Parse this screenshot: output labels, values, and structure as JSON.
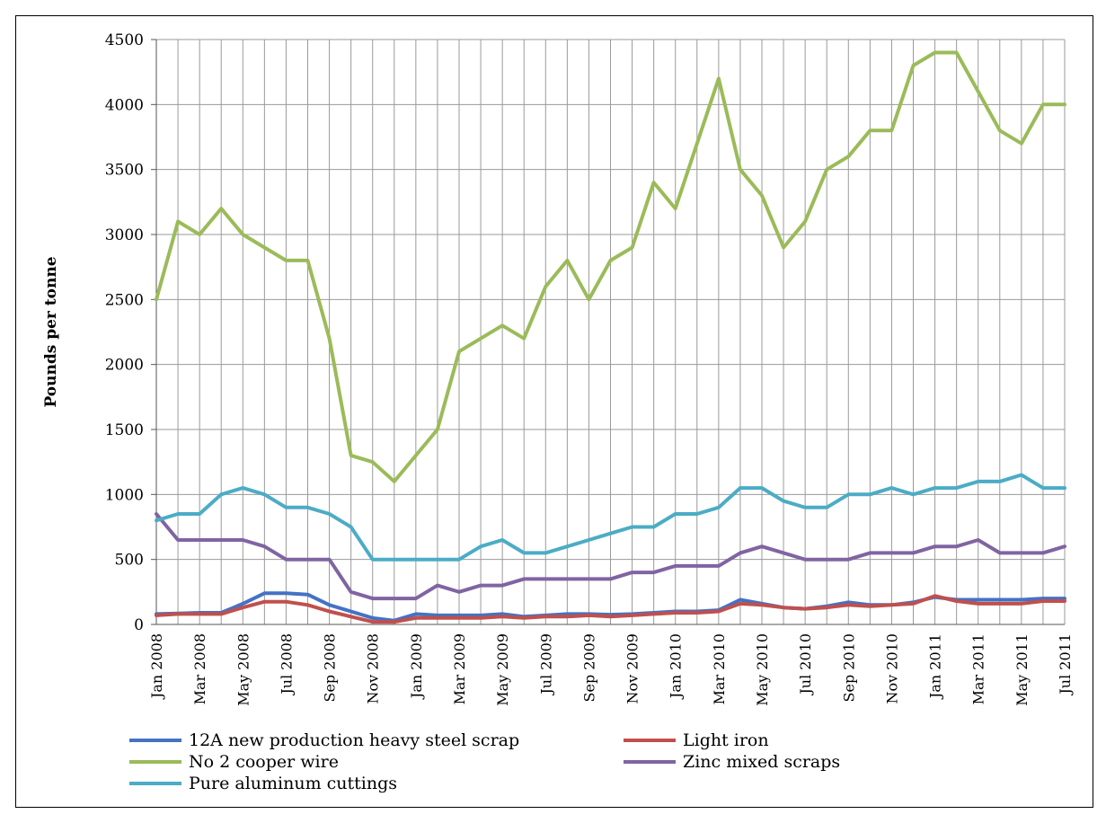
{
  "chart_data": {
    "type": "line",
    "ylabel": "Pounds per tonne",
    "xlabel": "",
    "ylim": [
      0,
      4500
    ],
    "yticks": [
      0,
      500,
      1000,
      1500,
      2000,
      2500,
      3000,
      3500,
      4000,
      4500
    ],
    "grid": "vertical and horizontal gridlines",
    "legend_position": "bottom",
    "categories": [
      "Jan 2008",
      "Feb 2008",
      "Mar 2008",
      "Apr 2008",
      "May 2008",
      "Jun 2008",
      "Jul 2008",
      "Aug 2008",
      "Sep 2008",
      "Oct 2008",
      "Nov 2008",
      "Dec 2008",
      "Jan 2009",
      "Feb 2009",
      "Mar 2009",
      "Apr 2009",
      "May 2009",
      "Jun 2009",
      "Jul 2009",
      "Aug 2009",
      "Sep 2009",
      "Oct 2009",
      "Nov 2009",
      "Dec 2009",
      "Jan 2010",
      "Feb 2010",
      "Mar 2010",
      "Apr 2010",
      "May 2010",
      "Jun 2010",
      "Jul 2010",
      "Aug 2010",
      "Sep 2010",
      "Oct 2010",
      "Nov 2010",
      "Dec 2010",
      "Jan 2011",
      "Feb 2011",
      "Mar 2011",
      "Apr 2011",
      "May 2011",
      "Jun 2011",
      "Jul 2011"
    ],
    "tick_labels": [
      "Jan 2008",
      "Mar 2008",
      "May 2008",
      "Jul 2008",
      "Sep 2008",
      "Nov 2008",
      "Jan 2009",
      "Mar 2009",
      "May 2009",
      "Jul 2009",
      "Sep 2009",
      "Nov 2009",
      "Jan 2010",
      "Mar 2010",
      "May 2010",
      "Jul 2010",
      "Sep 2010",
      "Nov 2010",
      "Jan 2011",
      "Mar 2011",
      "May 2011",
      "Jul 2011"
    ],
    "x_step": 0.5,
    "series": [
      {
        "name": "12A new production heavy steel scrap",
        "color": "#4472c4",
        "values": [
          80,
          85,
          90,
          90,
          160,
          240,
          240,
          230,
          150,
          100,
          50,
          30,
          80,
          70,
          70,
          70,
          80,
          60,
          70,
          80,
          80,
          75,
          80,
          90,
          100,
          100,
          110,
          190,
          160,
          130,
          120,
          140,
          170,
          150,
          150,
          170,
          210,
          190,
          190,
          190,
          190,
          200,
          200
        ],
        "x_halfmonths": [
          0,
          1,
          2,
          3,
          4,
          5,
          6,
          7,
          8,
          9,
          10,
          11,
          12,
          13,
          14,
          15,
          16,
          17,
          18,
          19,
          20,
          21,
          22,
          23,
          24,
          25,
          26,
          27,
          28,
          29,
          30,
          31,
          32,
          33,
          34,
          35,
          36,
          37,
          38,
          39,
          40,
          41,
          42
        ]
      },
      {
        "name": "Light iron",
        "color": "#c0504d",
        "values": [
          70,
          80,
          80,
          80,
          130,
          175,
          175,
          150,
          100,
          60,
          20,
          20,
          50,
          50,
          50,
          50,
          60,
          50,
          60,
          60,
          70,
          60,
          70,
          80,
          90,
          90,
          100,
          160,
          150,
          130,
          120,
          130,
          150,
          140,
          150,
          160,
          220,
          180,
          160,
          160,
          160,
          180,
          180
        ]
      },
      {
        "name": "No 2 cooper wire",
        "color": "#9bbb59",
        "values": [
          2500,
          3100,
          3000,
          3200,
          3000,
          2900,
          2800,
          2800,
          2200,
          1300,
          1250,
          1100,
          1300,
          1500,
          2100,
          2200,
          2300,
          2200,
          2600,
          2800,
          2500,
          2800,
          2900,
          3400,
          3200,
          3700,
          4200,
          3500,
          3300,
          2900,
          3100,
          3500,
          3600,
          3800,
          3800,
          4300,
          4400,
          4400,
          4100,
          3800,
          3700,
          4000,
          4000
        ]
      },
      {
        "name": "Zinc mixed scraps",
        "color": "#8064a2",
        "values": [
          850,
          650,
          650,
          650,
          650,
          600,
          500,
          500,
          500,
          250,
          200,
          200,
          200,
          300,
          250,
          300,
          300,
          350,
          350,
          350,
          350,
          350,
          400,
          400,
          450,
          450,
          450,
          550,
          600,
          550,
          500,
          500,
          500,
          550,
          550,
          550,
          600,
          600,
          650,
          550,
          550,
          550,
          600
        ]
      },
      {
        "name": "Pure aluminum cuttings",
        "color": "#4bacc6",
        "values": [
          800,
          850,
          850,
          1000,
          1050,
          1000,
          900,
          900,
          850,
          750,
          500,
          500,
          500,
          500,
          500,
          600,
          650,
          550,
          550,
          600,
          650,
          700,
          750,
          750,
          850,
          850,
          900,
          1050,
          1050,
          950,
          900,
          900,
          1000,
          1000,
          1050,
          1000,
          1050,
          1050,
          1100,
          1100,
          1150,
          1050,
          1050
        ]
      }
    ]
  }
}
